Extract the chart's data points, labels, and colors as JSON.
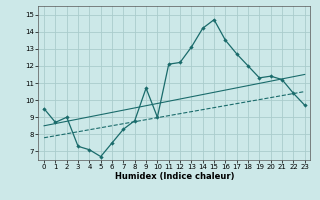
{
  "xlabel": "Humidex (Indice chaleur)",
  "bg_color": "#cce8e8",
  "grid_color": "#aacccc",
  "line_color": "#1a6b6b",
  "xlim": [
    -0.5,
    23.5
  ],
  "ylim": [
    6.5,
    15.5
  ],
  "xticks": [
    0,
    1,
    2,
    3,
    4,
    5,
    6,
    7,
    8,
    9,
    10,
    11,
    12,
    13,
    14,
    15,
    16,
    17,
    18,
    19,
    20,
    21,
    22,
    23
  ],
  "yticks": [
    7,
    8,
    9,
    10,
    11,
    12,
    13,
    14,
    15
  ],
  "line1_x": [
    0,
    1,
    2,
    3,
    4,
    5,
    6,
    7,
    8,
    9,
    10,
    11,
    12,
    13,
    14,
    15,
    16,
    17,
    18,
    19,
    20,
    21,
    22,
    23
  ],
  "line1_y": [
    9.5,
    8.7,
    9.0,
    7.3,
    7.1,
    6.7,
    7.5,
    8.3,
    8.8,
    10.7,
    9.0,
    12.1,
    12.2,
    13.1,
    14.2,
    14.7,
    13.5,
    12.7,
    12.0,
    11.3,
    11.4,
    11.2,
    10.4,
    9.7
  ],
  "line2_x": [
    0,
    23
  ],
  "line2_y": [
    7.8,
    10.5
  ],
  "line3_x": [
    0,
    23
  ],
  "line3_y": [
    8.5,
    11.5
  ]
}
